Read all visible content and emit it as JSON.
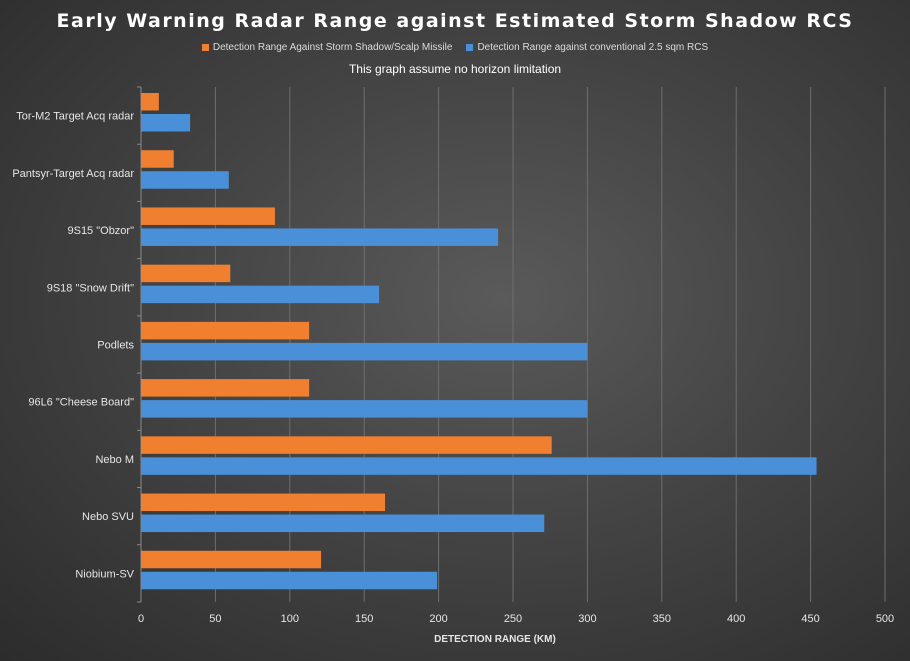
{
  "chart_data": {
    "type": "bar",
    "orientation": "horizontal",
    "title": "Early Warning Radar Range against Estimated Storm Shadow RCS",
    "subtitle": "This graph assume no horizon limitation",
    "xlabel": "DETECTION RANGE (KM)",
    "ylabel": "",
    "xlim": [
      0,
      500
    ],
    "xticks": [
      0,
      50,
      100,
      150,
      200,
      250,
      300,
      350,
      400,
      450,
      500
    ],
    "grid": "vertical",
    "legend_position": "top",
    "categories": [
      "Tor-M2 Target Acq radar",
      "Pantsyr-Target Acq radar",
      "9S15  \"Obzor\"",
      "9S18  \"Snow Drift\"",
      "Podlets",
      "96L6 \"Cheese Board\"",
      "Nebo M",
      "Nebo SVU",
      "Niobium-SV"
    ],
    "series": [
      {
        "name": "Detection Range Against Storm Shadow/Scalp Missile",
        "color": "#f07f2f",
        "values": [
          12,
          22,
          90,
          60,
          113,
          113,
          276,
          164,
          121
        ]
      },
      {
        "name": "Detection Range against conventional 2.5 sqm RCS",
        "color": "#4a90d9",
        "values": [
          33,
          59,
          240,
          160,
          300,
          300,
          454,
          271,
          199
        ]
      }
    ]
  }
}
